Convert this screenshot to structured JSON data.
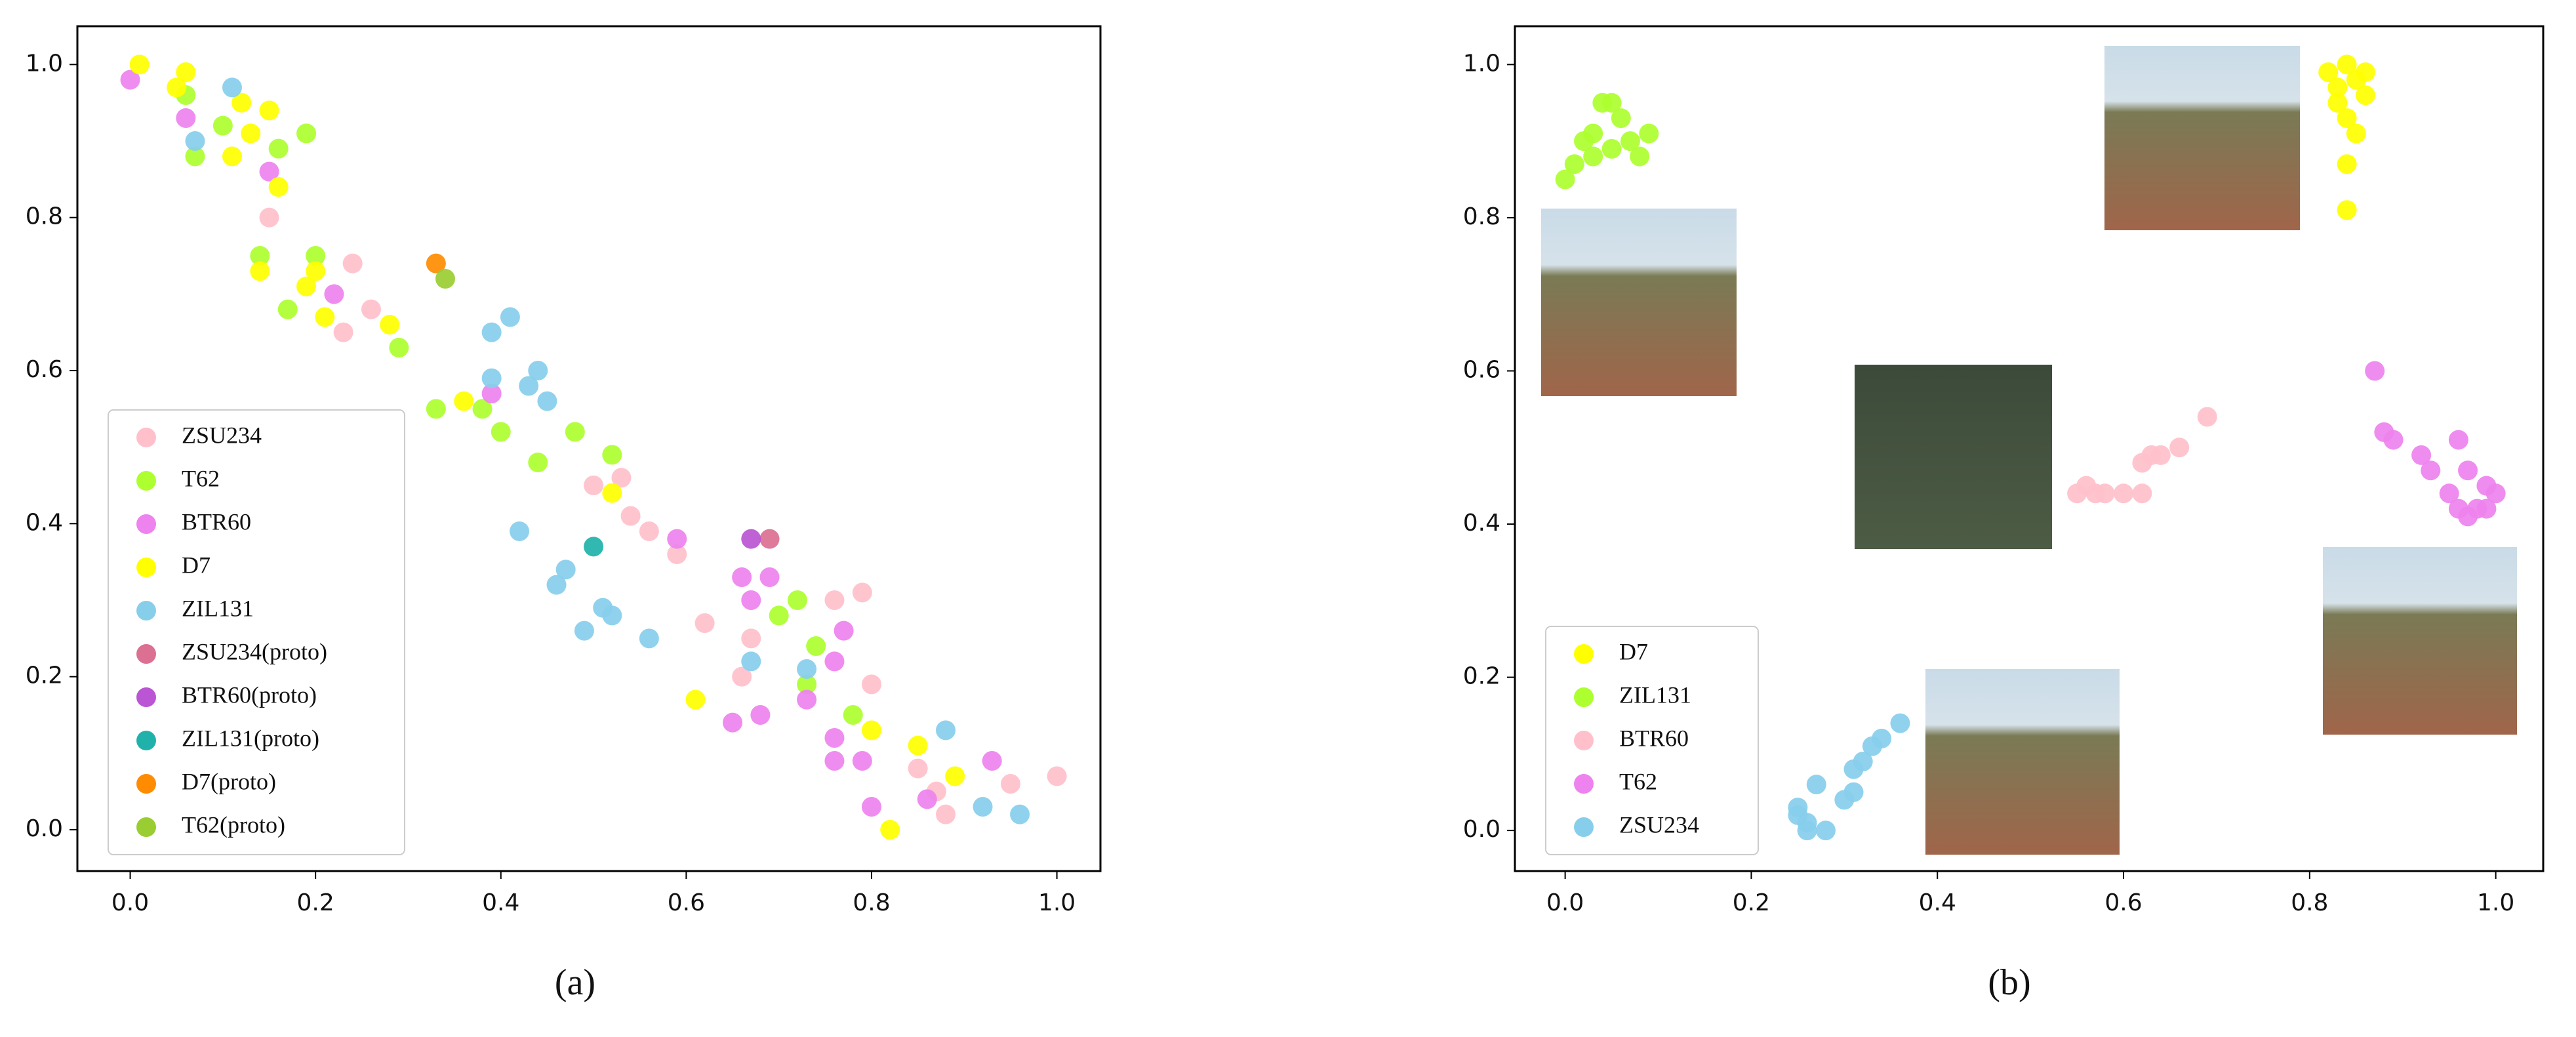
{
  "chart_data": [
    {
      "type": "scatter",
      "caption": "(a)",
      "legend": "lower left",
      "xlim": [
        -0.057,
        1.047
      ],
      "ylim": [
        -0.054,
        1.05
      ],
      "xticks": [
        {
          "value": 0,
          "label": "0.0"
        },
        0.2,
        0.4,
        0.6,
        0.8,
        {
          "value": 1,
          "label": "1.0"
        }
      ],
      "yticks": [
        {
          "value": 0,
          "label": "0.0"
        },
        0.2,
        0.4,
        0.6,
        0.8,
        {
          "value": 1,
          "label": "1.0"
        }
      ],
      "series": [
        {
          "name": "ZSU234",
          "color": "#ffc0cb",
          "x": [
            0.15,
            0.24,
            0.23,
            0.26,
            0.5,
            0.53,
            0.54,
            0.56,
            0.59,
            0.62,
            0.66,
            0.67,
            0.76,
            0.79,
            0.8,
            0.85,
            0.87,
            0.88,
            0.95,
            1.0
          ],
          "values": [
            0.8,
            0.74,
            0.65,
            0.68,
            0.45,
            0.46,
            0.41,
            0.39,
            0.36,
            0.27,
            0.2,
            0.25,
            0.3,
            0.31,
            0.19,
            0.08,
            0.05,
            0.02,
            0.06,
            0.07
          ]
        },
        {
          "name": "T62",
          "color": "#adff2f",
          "x": [
            0.06,
            0.07,
            0.1,
            0.16,
            0.19,
            0.14,
            0.2,
            0.17,
            0.29,
            0.33,
            0.38,
            0.4,
            0.44,
            0.48,
            0.52,
            0.7,
            0.72,
            0.73,
            0.74,
            0.78
          ],
          "values": [
            0.96,
            0.88,
            0.92,
            0.89,
            0.91,
            0.75,
            0.75,
            0.68,
            0.63,
            0.55,
            0.55,
            0.52,
            0.48,
            0.52,
            0.49,
            0.28,
            0.3,
            0.19,
            0.24,
            0.15
          ]
        },
        {
          "name": "BTR60",
          "color": "#ee82ee",
          "x": [
            0.0,
            0.06,
            0.15,
            0.22,
            0.39,
            0.59,
            0.66,
            0.67,
            0.69,
            0.68,
            0.65,
            0.73,
            0.76,
            0.77,
            0.76,
            0.76,
            0.79,
            0.8,
            0.86,
            0.93
          ],
          "values": [
            0.98,
            0.93,
            0.86,
            0.7,
            0.57,
            0.38,
            0.33,
            0.3,
            0.33,
            0.15,
            0.14,
            0.17,
            0.22,
            0.26,
            0.12,
            0.09,
            0.09,
            0.03,
            0.04,
            0.09
          ]
        },
        {
          "name": "D7",
          "color": "#ffff00",
          "x": [
            0.01,
            0.06,
            0.05,
            0.12,
            0.15,
            0.11,
            0.13,
            0.16,
            0.14,
            0.19,
            0.21,
            0.2,
            0.28,
            0.36,
            0.52,
            0.61,
            0.8,
            0.82,
            0.85,
            0.89
          ],
          "values": [
            1.0,
            0.99,
            0.97,
            0.95,
            0.94,
            0.88,
            0.91,
            0.84,
            0.73,
            0.71,
            0.67,
            0.73,
            0.66,
            0.56,
            0.44,
            0.17,
            0.13,
            0.0,
            0.11,
            0.07
          ]
        },
        {
          "name": "ZIL131",
          "color": "#87ceeb",
          "x": [
            0.07,
            0.11,
            0.39,
            0.41,
            0.39,
            0.43,
            0.44,
            0.45,
            0.42,
            0.46,
            0.47,
            0.49,
            0.51,
            0.52,
            0.56,
            0.67,
            0.73,
            0.88,
            0.92,
            0.96
          ],
          "values": [
            0.9,
            0.97,
            0.65,
            0.67,
            0.59,
            0.58,
            0.6,
            0.56,
            0.39,
            0.32,
            0.34,
            0.26,
            0.29,
            0.28,
            0.25,
            0.22,
            0.21,
            0.13,
            0.03,
            0.02
          ]
        },
        {
          "name": "ZSU234(proto)",
          "color": "#db7093",
          "x": [
            0.69
          ],
          "values": [
            0.38
          ]
        },
        {
          "name": "BTR60(proto)",
          "color": "#ba55d3",
          "x": [
            0.67
          ],
          "values": [
            0.38
          ]
        },
        {
          "name": "ZIL131(proto)",
          "color": "#20b2aa",
          "x": [
            0.5
          ],
          "values": [
            0.37
          ]
        },
        {
          "name": "D7(proto)",
          "color": "#ff8c00",
          "x": [
            0.33
          ],
          "values": [
            0.74
          ]
        },
        {
          "name": "T62(proto)",
          "color": "#9acd32",
          "x": [
            0.34
          ],
          "values": [
            0.72
          ]
        }
      ]
    },
    {
      "type": "scatter",
      "caption": "(b)",
      "legend": "lower left",
      "xlim": [
        -0.054,
        1.051
      ],
      "ylim": [
        -0.053,
        1.05
      ],
      "xticks": [
        {
          "value": 0,
          "label": "0.0"
        },
        0.2,
        0.4,
        0.6,
        0.8,
        {
          "value": 1,
          "label": "1.0"
        }
      ],
      "yticks": [
        {
          "value": 0,
          "label": "0.0"
        },
        0.2,
        0.4,
        0.6,
        0.8,
        {
          "value": 1,
          "label": "1.0"
        }
      ],
      "series": [
        {
          "name": "D7",
          "color": "#ffff00",
          "x": [
            0.82,
            0.83,
            0.84,
            0.85,
            0.86,
            0.84,
            0.85,
            0.83,
            0.86,
            0.84,
            0.84
          ],
          "values": [
            0.99,
            0.97,
            1.0,
            0.98,
            0.96,
            0.93,
            0.91,
            0.95,
            0.99,
            0.87,
            0.81
          ]
        },
        {
          "name": "ZIL131",
          "color": "#adff2f",
          "x": [
            0.0,
            0.01,
            0.02,
            0.03,
            0.04,
            0.05,
            0.06,
            0.05,
            0.07,
            0.08,
            0.09,
            0.03
          ],
          "values": [
            0.85,
            0.87,
            0.9,
            0.91,
            0.95,
            0.95,
            0.93,
            0.89,
            0.9,
            0.88,
            0.91,
            0.88
          ]
        },
        {
          "name": "BTR60",
          "color": "#ffc0cb",
          "x": [
            0.55,
            0.56,
            0.57,
            0.58,
            0.6,
            0.62,
            0.62,
            0.63,
            0.64,
            0.66,
            0.69
          ],
          "values": [
            0.44,
            0.45,
            0.44,
            0.44,
            0.44,
            0.44,
            0.48,
            0.49,
            0.49,
            0.5,
            0.54
          ]
        },
        {
          "name": "T62",
          "color": "#ee82ee",
          "x": [
            0.87,
            0.88,
            0.89,
            0.92,
            0.93,
            0.95,
            0.96,
            0.96,
            0.97,
            0.98,
            0.99,
            1.0,
            0.99,
            0.97
          ],
          "values": [
            0.6,
            0.52,
            0.51,
            0.49,
            0.47,
            0.44,
            0.51,
            0.42,
            0.47,
            0.42,
            0.45,
            0.44,
            0.42,
            0.41
          ]
        },
        {
          "name": "ZSU234",
          "color": "#87ceeb",
          "x": [
            0.25,
            0.26,
            0.26,
            0.28,
            0.27,
            0.3,
            0.31,
            0.31,
            0.32,
            0.33,
            0.34,
            0.36,
            0.25
          ],
          "values": [
            0.03,
            0.01,
            0.0,
            0.0,
            0.06,
            0.04,
            0.05,
            0.08,
            0.09,
            0.11,
            0.12,
            0.14,
            0.02
          ]
        }
      ]
    }
  ]
}
